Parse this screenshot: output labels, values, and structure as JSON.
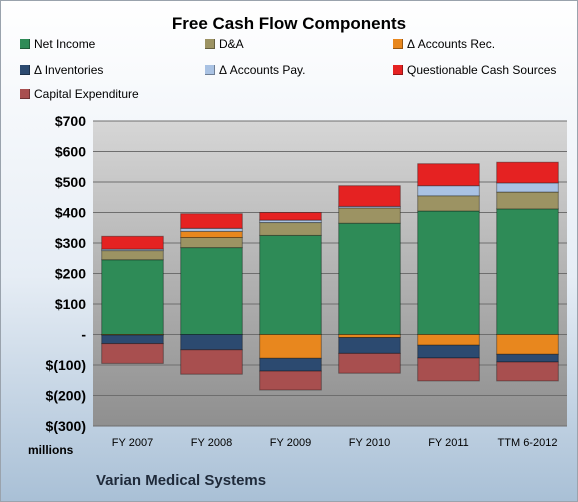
{
  "chart_data": {
    "type": "bar",
    "stacked": true,
    "title": "Free Cash Flow Components",
    "xlabel": "",
    "ylabel": "",
    "y_unit_label": "millions",
    "footer": "Varian Medical Systems",
    "categories": [
      "FY 2007",
      "FY 2008",
      "FY 2009",
      "FY 2010",
      "FY 2011",
      "TTM 6-2012"
    ],
    "ylim": [
      -300,
      700
    ],
    "y_ticks": [
      700,
      600,
      500,
      400,
      300,
      200,
      100,
      0,
      -100,
      -200,
      -300
    ],
    "y_tick_labels": [
      "$700",
      "$600",
      "$500",
      "$400",
      "$300",
      "$200",
      "$100",
      "-",
      "$(100)",
      "$(200)",
      "$(300)"
    ],
    "grid": true,
    "legend_position": "top",
    "series": [
      {
        "name": "Net Income",
        "color": "#2e8b57",
        "values": [
          245,
          285,
          325,
          365,
          405,
          412
        ]
      },
      {
        "name": "D&A",
        "color": "#9c9363",
        "values": [
          30,
          33,
          42,
          50,
          50,
          55
        ]
      },
      {
        "name": "Δ Accounts Rec.",
        "color": "#e8871e",
        "values": [
          -2,
          20,
          -78,
          -10,
          -35,
          -65
        ]
      },
      {
        "name": "Δ Inventories",
        "color": "#2c4a70",
        "values": [
          -28,
          -50,
          -42,
          -52,
          -42,
          -25
        ]
      },
      {
        "name": "Δ Accounts Pay.",
        "color": "#a9c2e3",
        "values": [
          5,
          10,
          8,
          5,
          33,
          30
        ]
      },
      {
        "name": "Questionable Cash Sources",
        "color": "#e52222",
        "values": [
          42,
          48,
          25,
          68,
          72,
          68
        ]
      },
      {
        "name": "Capital Expenditure",
        "color": "#a84f4f",
        "values": [
          -65,
          -80,
          -62,
          -65,
          -75,
          -62
        ]
      }
    ]
  }
}
